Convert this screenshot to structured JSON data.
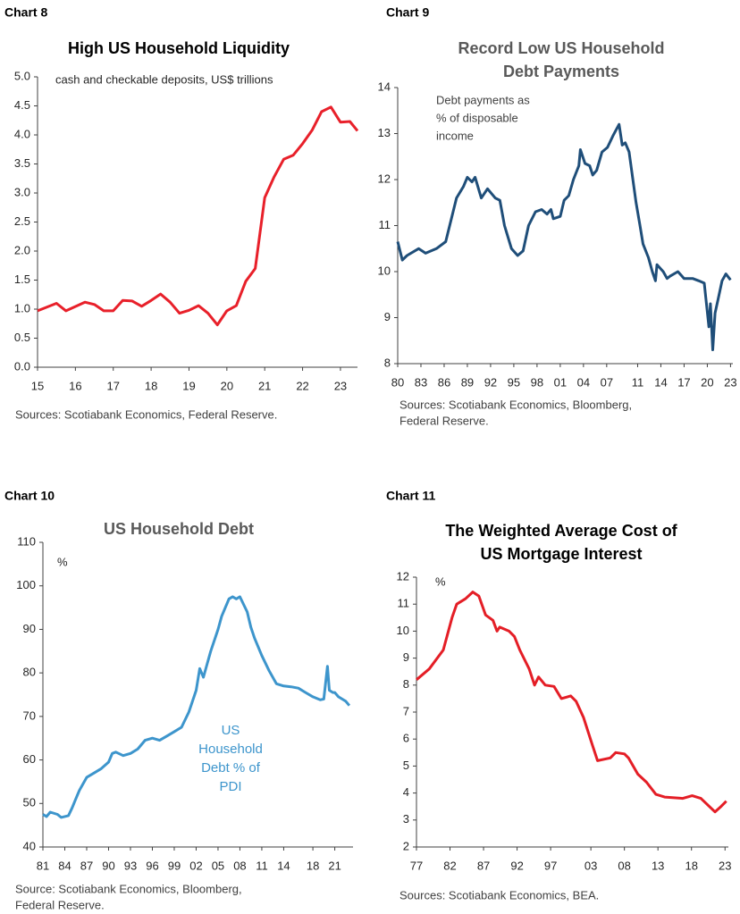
{
  "chart_data": [
    {
      "type": "line",
      "label": "Chart 8",
      "title": [
        "High US Household Liquidity"
      ],
      "annotation": [
        "cash and checkable deposits, US$ trillions"
      ],
      "source": [
        "Sources: Scotiabank Economics, Federal Reserve."
      ],
      "color": "#e8202a",
      "x": [
        2015.0,
        2015.5,
        2015.75,
        2016.25,
        2016.5,
        2016.75,
        2017.0,
        2017.25,
        2017.5,
        2017.75,
        2018.0,
        2018.25,
        2018.5,
        2018.75,
        2019.0,
        2019.25,
        2019.5,
        2019.75,
        2020.0,
        2020.25,
        2020.5,
        2020.75,
        2021.0,
        2021.25,
        2021.5,
        2021.75,
        2022.0,
        2022.25,
        2022.5,
        2022.75,
        2023.0,
        2023.25,
        2023.45
      ],
      "values": [
        0.97,
        1.1,
        0.97,
        1.12,
        1.08,
        0.97,
        0.97,
        1.15,
        1.14,
        1.05,
        1.15,
        1.26,
        1.12,
        0.93,
        0.98,
        1.06,
        0.93,
        0.73,
        0.97,
        1.06,
        1.48,
        1.7,
        2.92,
        3.28,
        3.58,
        3.65,
        3.85,
        4.08,
        4.4,
        4.48,
        4.22,
        4.23,
        4.07
      ],
      "xlim": [
        2015,
        2023.45
      ],
      "ylim": [
        0,
        5
      ],
      "xticks": [
        {
          "value": 2015,
          "label": "15"
        },
        {
          "value": 2016,
          "label": "16"
        },
        {
          "value": 2017,
          "label": "17"
        },
        {
          "value": 2018,
          "label": "18"
        },
        {
          "value": 2019,
          "label": "19"
        },
        {
          "value": 2020,
          "label": "20"
        },
        {
          "value": 2021,
          "label": "21"
        },
        {
          "value": 2022,
          "label": "22"
        },
        {
          "value": 2023,
          "label": "23"
        }
      ],
      "yticks": [
        {
          "value": 0,
          "label": "0.0"
        },
        0.5,
        {
          "value": 1,
          "label": "1.0"
        },
        1.5,
        {
          "value": 2,
          "label": "2.0"
        },
        2.5,
        {
          "value": 3,
          "label": "3.0"
        },
        3.5,
        {
          "value": 4,
          "label": "4.0"
        },
        4.5,
        {
          "value": 5,
          "label": "5.0"
        }
      ]
    },
    {
      "type": "line",
      "label": "Chart 9",
      "title": [
        "Record Low US Household",
        "Debt Payments"
      ],
      "annotation": [
        "Debt payments as",
        "% of disposable",
        "income"
      ],
      "source": [
        "Sources: Scotiabank Economics, Bloomberg,",
        "Federal Reserve."
      ],
      "color": "#1f4e79",
      "x": [
        1980.0,
        1980.6,
        1981.2,
        1982.7,
        1983.6,
        1985.0,
        1986.2,
        1987.6,
        1988.5,
        1989.0,
        1989.6,
        1990.0,
        1990.8,
        1991.6,
        1992.6,
        1993.2,
        1993.8,
        1994.7,
        1995.5,
        1996.2,
        1996.9,
        1997.8,
        1998.6,
        1999.3,
        1999.8,
        2000.1,
        2001.0,
        2001.5,
        2002.1,
        2002.7,
        2003.4,
        2003.6,
        2004.2,
        2004.8,
        2005.2,
        2005.7,
        2006.4,
        2007.1,
        2007.8,
        2008.6,
        2009.0,
        2009.4,
        2009.9,
        2010.8,
        2011.3,
        2011.7,
        2012.4,
        2012.9,
        2013.3,
        2013.5,
        2014.3,
        2014.8,
        2015.2,
        2016.2,
        2017.0,
        2018.1,
        2018.9,
        2019.6,
        2020.2,
        2020.4,
        2020.7,
        2021.0,
        2021.4,
        2021.9,
        2022.4,
        2023.0
      ],
      "values": [
        10.65,
        10.25,
        10.35,
        10.5,
        10.4,
        10.5,
        10.65,
        11.6,
        11.85,
        12.05,
        11.95,
        12.05,
        11.6,
        11.8,
        11.6,
        11.55,
        11.0,
        10.5,
        10.35,
        10.45,
        11.0,
        11.3,
        11.35,
        11.25,
        11.35,
        11.15,
        11.2,
        11.55,
        11.65,
        12.0,
        12.3,
        12.65,
        12.35,
        12.3,
        12.1,
        12.2,
        12.6,
        12.7,
        12.95,
        13.2,
        12.75,
        12.8,
        12.6,
        11.5,
        11.0,
        10.6,
        10.3,
        10.0,
        9.8,
        10.15,
        10.0,
        9.85,
        9.9,
        10.0,
        9.85,
        9.85,
        9.8,
        9.75,
        8.8,
        9.3,
        8.3,
        9.1,
        9.4,
        9.8,
        9.95,
        9.82
      ],
      "xlim": [
        1980,
        2023.3
      ],
      "ylim": [
        8,
        14
      ],
      "xticks": [
        {
          "value": 1980,
          "label": "80"
        },
        {
          "value": 1983,
          "label": "83"
        },
        {
          "value": 1986,
          "label": "86"
        },
        {
          "value": 1989,
          "label": "89"
        },
        {
          "value": 1992,
          "label": "92"
        },
        {
          "value": 1995,
          "label": "95"
        },
        {
          "value": 1998,
          "label": "98"
        },
        {
          "value": 2001,
          "label": "01"
        },
        {
          "value": 2004,
          "label": "04"
        },
        {
          "value": 2007,
          "label": "07"
        },
        {
          "value": 2011,
          "label": "11"
        },
        {
          "value": 2014,
          "label": "14"
        },
        {
          "value": 2017,
          "label": "17"
        },
        {
          "value": 2020,
          "label": "20"
        },
        {
          "value": 2023,
          "label": "23"
        }
      ],
      "yticks": [
        8,
        9,
        10,
        11,
        12,
        13,
        14
      ]
    },
    {
      "type": "line",
      "label": "Chart 10",
      "title": [
        "US Household Debt"
      ],
      "y_unit": "%",
      "annotation": [
        "US",
        "Household",
        "Debt % of",
        "PDI"
      ],
      "source": [
        "Source: Scotiabank Economics, Bloomberg,",
        "Federal Reserve."
      ],
      "color": "#3d95cc",
      "x": [
        1981,
        1981.5,
        1982,
        1983,
        1983.5,
        1984,
        1984.5,
        1985,
        1985.5,
        1986,
        1986.5,
        1987,
        1988,
        1989,
        1990,
        1990.5,
        1991,
        1992,
        1993,
        1994,
        1995,
        1996,
        1997,
        1998,
        1999,
        2000,
        2001,
        2002,
        2002.5,
        2003,
        2003.5,
        2004,
        2005,
        2005.5,
        2006,
        2006.5,
        2007,
        2007.5,
        2008,
        2009,
        2009.5,
        2010,
        2011,
        2012,
        2013,
        2014,
        2015,
        2016,
        2017,
        2018,
        2019,
        2019.5,
        2020,
        2020.25,
        2020.75,
        2021,
        2021.5,
        2022,
        2022.5,
        2023
      ],
      "values": [
        47.5,
        47,
        48,
        47.5,
        46.8,
        47,
        47.2,
        49,
        51,
        53,
        54.5,
        56,
        57,
        58,
        59.5,
        61.5,
        61.8,
        61,
        61.5,
        62.5,
        64.5,
        65,
        64.5,
        65.5,
        66.5,
        67.5,
        71,
        76,
        81,
        79,
        82,
        85,
        90,
        93,
        95,
        97,
        97.5,
        97,
        97.5,
        94,
        90.5,
        88,
        84,
        80.5,
        77.5,
        77,
        76.8,
        76.5,
        75.5,
        74.5,
        73.8,
        74,
        81.5,
        76,
        75.5,
        75.5,
        74.5,
        74,
        73.5,
        72.5
      ],
      "xlim": [
        1981,
        2023.5
      ],
      "ylim": [
        40,
        110
      ],
      "xticks": [
        {
          "value": 1981,
          "label": "81"
        },
        {
          "value": 1984,
          "label": "84"
        },
        {
          "value": 1987,
          "label": "87"
        },
        {
          "value": 1990,
          "label": "90"
        },
        {
          "value": 1993,
          "label": "93"
        },
        {
          "value": 1996,
          "label": "96"
        },
        {
          "value": 1999,
          "label": "99"
        },
        {
          "value": 2002,
          "label": "02"
        },
        {
          "value": 2005,
          "label": "05"
        },
        {
          "value": 2008,
          "label": "08"
        },
        {
          "value": 2011,
          "label": "11"
        },
        {
          "value": 2014,
          "label": "14"
        },
        {
          "value": 2018,
          "label": "18"
        },
        {
          "value": 2021,
          "label": "21"
        }
      ],
      "yticks": [
        40,
        50,
        60,
        70,
        80,
        90,
        100,
        110
      ]
    },
    {
      "type": "line",
      "label": "Chart 11",
      "title": [
        "The Weighted Average Cost of",
        "US Mortgage Interest"
      ],
      "y_unit": "%",
      "source": [
        "Sources: Scotiabank Economics, BEA."
      ],
      "color": "#e41e26",
      "x": [
        1977,
        1978.9,
        1981,
        1982.3,
        1983,
        1984.3,
        1985.4,
        1986.3,
        1987.3,
        1988.4,
        1989,
        1989.4,
        1990.8,
        1991.6,
        1992.4,
        1993.8,
        1994.6,
        1995.2,
        1996.2,
        1997.5,
        1998.6,
        2000,
        2000.8,
        2001.9,
        2003.2,
        2004,
        2005.9,
        2006.7,
        2008,
        2008.6,
        2010,
        2011.3,
        2012.7,
        2014,
        2016.7,
        2018.1,
        2019.4,
        2021.5,
        2022.4,
        2023.2
      ],
      "values": [
        8.2,
        8.6,
        9.3,
        10.5,
        11,
        11.2,
        11.45,
        11.3,
        10.6,
        10.4,
        10,
        10.15,
        10,
        9.8,
        9.3,
        8.6,
        8,
        8.3,
        8,
        7.95,
        7.5,
        7.6,
        7.4,
        6.8,
        5.8,
        5.2,
        5.3,
        5.5,
        5.45,
        5.3,
        4.7,
        4.4,
        3.95,
        3.85,
        3.8,
        3.9,
        3.8,
        3.3,
        3.5,
        3.7
      ],
      "xlim": [
        1977,
        2023.5
      ],
      "ylim": [
        2,
        12
      ],
      "xticks": [
        {
          "value": 1977,
          "label": "77"
        },
        {
          "value": 1982,
          "label": "82"
        },
        {
          "value": 1987,
          "label": "87"
        },
        {
          "value": 1992,
          "label": "92"
        },
        {
          "value": 1997,
          "label": "97"
        },
        {
          "value": 2003,
          "label": "03"
        },
        {
          "value": 2008,
          "label": "08"
        },
        {
          "value": 2013,
          "label": "13"
        },
        {
          "value": 2018,
          "label": "18"
        },
        {
          "value": 2023,
          "label": "23"
        }
      ],
      "yticks": [
        2,
        3,
        4,
        5,
        6,
        7,
        8,
        9,
        10,
        11,
        12
      ]
    }
  ]
}
